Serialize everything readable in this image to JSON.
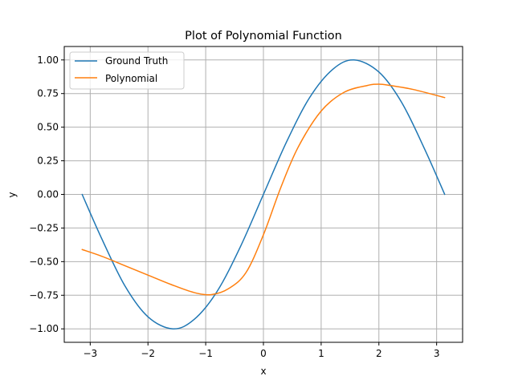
{
  "chart_data": {
    "type": "line",
    "title": "Plot of Polynomial Function",
    "xlabel": "x",
    "ylabel": "y",
    "xlim": [
      -3.45,
      3.45
    ],
    "ylim": [
      -1.1,
      1.1
    ],
    "xticks": [
      -3,
      -2,
      -1,
      0,
      1,
      2,
      3
    ],
    "xtick_labels": [
      "−3",
      "−2",
      "−1",
      "0",
      "1",
      "2",
      "3"
    ],
    "yticks": [
      -1.0,
      -0.75,
      -0.5,
      -0.25,
      0.0,
      0.25,
      0.5,
      0.75,
      1.0
    ],
    "ytick_labels": [
      "−1.00",
      "−0.75",
      "−0.50",
      "−0.25",
      "0.00",
      "0.25",
      "0.50",
      "0.75",
      "1.00"
    ],
    "grid": true,
    "legend_position": "top-left",
    "series": [
      {
        "name": "Ground Truth",
        "color": "#1f77b4",
        "x": [
          -3.14,
          -2.8,
          -2.4,
          -2.0,
          -1.57,
          -1.2,
          -0.8,
          -0.4,
          0.0,
          0.4,
          0.8,
          1.2,
          1.57,
          2.0,
          2.4,
          2.8,
          3.14
        ],
        "y": [
          0.0,
          -0.33,
          -0.68,
          -0.91,
          -1.0,
          -0.93,
          -0.72,
          -0.39,
          0.0,
          0.39,
          0.72,
          0.93,
          1.0,
          0.91,
          0.68,
          0.33,
          0.0
        ]
      },
      {
        "name": "Polynomial",
        "color": "#ff7f0e",
        "x": [
          -3.14,
          -2.8,
          -2.4,
          -2.0,
          -1.6,
          -1.2,
          -0.9,
          -0.6,
          -0.3,
          0.0,
          0.3,
          0.6,
          1.0,
          1.4,
          1.8,
          2.0,
          2.2,
          2.6,
          3.14
        ],
        "y": [
          -0.41,
          -0.46,
          -0.53,
          -0.6,
          -0.67,
          -0.73,
          -0.745,
          -0.7,
          -0.58,
          -0.3,
          0.05,
          0.35,
          0.62,
          0.76,
          0.81,
          0.82,
          0.81,
          0.78,
          0.72
        ]
      }
    ]
  }
}
